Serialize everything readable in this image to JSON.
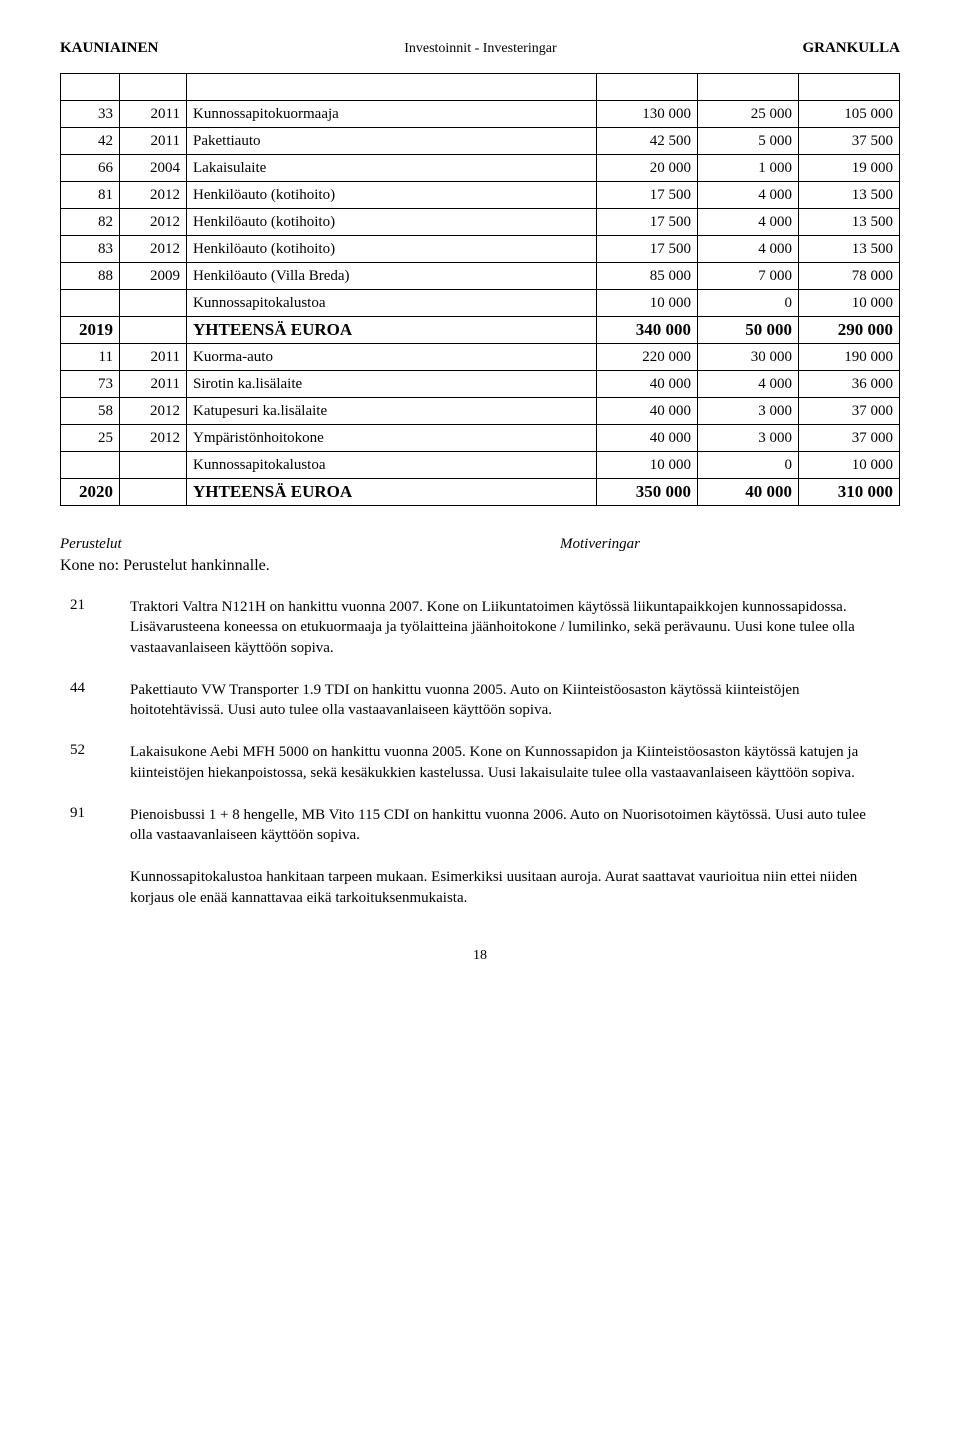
{
  "header": {
    "left": "KAUNIAINEN",
    "center": "Investoinnit - Investeringar",
    "right": "GRANKULLA"
  },
  "table": {
    "rows": [
      {
        "type": "empty"
      },
      {
        "type": "data",
        "code": "33",
        "year": "2011",
        "name": "Kunnossapitokuormaaja",
        "c1": "130 000",
        "c2": "25 000",
        "c3": "105 000"
      },
      {
        "type": "data",
        "code": "42",
        "year": "2011",
        "name": "Pakettiauto",
        "c1": "42 500",
        "c2": "5 000",
        "c3": "37 500"
      },
      {
        "type": "data",
        "code": "66",
        "year": "2004",
        "name": "Lakaisulaite",
        "c1": "20 000",
        "c2": "1 000",
        "c3": "19 000"
      },
      {
        "type": "data",
        "code": "81",
        "year": "2012",
        "name": "Henkilöauto (kotihoito)",
        "c1": "17 500",
        "c2": "4 000",
        "c3": "13 500"
      },
      {
        "type": "data",
        "code": "82",
        "year": "2012",
        "name": "Henkilöauto (kotihoito)",
        "c1": "17 500",
        "c2": "4 000",
        "c3": "13 500"
      },
      {
        "type": "data",
        "code": "83",
        "year": "2012",
        "name": "Henkilöauto (kotihoito)",
        "c1": "17 500",
        "c2": "4 000",
        "c3": "13 500"
      },
      {
        "type": "data",
        "code": "88",
        "year": "2009",
        "name": "Henkilöauto (Villa Breda)",
        "c1": "85 000",
        "c2": "7 000",
        "c3": "78 000"
      },
      {
        "type": "data",
        "code": "",
        "year": "",
        "name": "Kunnossapitokalustoa",
        "c1": "10 000",
        "c2": "0",
        "c3": "10 000"
      },
      {
        "type": "total",
        "code": "2019",
        "year": "",
        "name": "YHTEENSÄ EUROA",
        "c1": "340 000",
        "c2": "50 000",
        "c3": "290 000"
      },
      {
        "type": "data",
        "code": "11",
        "year": "2011",
        "name": "Kuorma-auto",
        "c1": "220 000",
        "c2": "30 000",
        "c3": "190 000"
      },
      {
        "type": "data",
        "code": "73",
        "year": "2011",
        "name": "Sirotin ka.lisälaite",
        "c1": "40 000",
        "c2": "4 000",
        "c3": "36 000"
      },
      {
        "type": "data",
        "code": "58",
        "year": "2012",
        "name": "Katupesuri ka.lisälaite",
        "c1": "40 000",
        "c2": "3 000",
        "c3": "37 000"
      },
      {
        "type": "data",
        "code": "25",
        "year": "2012",
        "name": "Ympäristönhoitokone",
        "c1": "40 000",
        "c2": "3 000",
        "c3": "37 000"
      },
      {
        "type": "data",
        "code": "",
        "year": "",
        "name": "Kunnossapitokalustoa",
        "c1": "10 000",
        "c2": "0",
        "c3": "10 000"
      },
      {
        "type": "total",
        "code": "2020",
        "year": "",
        "name": "YHTEENSÄ EUROA",
        "c1": "350 000",
        "c2": "40 000",
        "c3": "310 000"
      }
    ]
  },
  "justifications": {
    "heading_left": "Perustelut",
    "heading_right": "Motiveringar",
    "kone_title": "Kone no: Perustelut hankinnalle.",
    "items": [
      {
        "num": "21",
        "text": "Traktori Valtra N121H on hankittu vuonna 2007. Kone on Liikuntatoimen käytössä liikuntapaikkojen kunnossapidossa. Lisävarusteena koneessa on etukuormaaja ja työlaitteina jäänhoitokone / lumilinko, sekä perävaunu. Uusi kone tulee olla vastaavanlaiseen käyttöön sopiva."
      },
      {
        "num": "44",
        "text": "Pakettiauto VW Transporter 1.9 TDI on hankittu vuonna 2005. Auto on Kiinteistöosaston käytössä kiinteistöjen hoitotehtävissä. Uusi auto tulee olla vastaavanlaiseen käyttöön sopiva."
      },
      {
        "num": "52",
        "text": "Lakaisukone Aebi MFH 5000 on hankittu vuonna 2005. Kone on Kunnossapidon ja Kiinteistöosaston käytössä katujen ja kiinteistöjen hiekanpoistossa, sekä kesäkukkien kastelussa. Uusi lakaisulaite tulee olla vastaavanlaiseen käyttöön sopiva."
      },
      {
        "num": "91",
        "text": "Pienoisbussi 1 + 8 hengelle, MB Vito 115 CDI on hankittu vuonna 2006. Auto on Nuorisotoimen käytössä. Uusi auto tulee olla vastaavanlaiseen käyttöön sopiva."
      },
      {
        "num": "",
        "text": "Kunnossapitokalustoa hankitaan tarpeen mukaan. Esimerkiksi uusitaan auroja. Aurat saattavat vaurioitua niin ettei niiden korjaus ole enää kannattavaa eikä tarkoituksenmukaista."
      }
    ]
  },
  "page_number": "18"
}
